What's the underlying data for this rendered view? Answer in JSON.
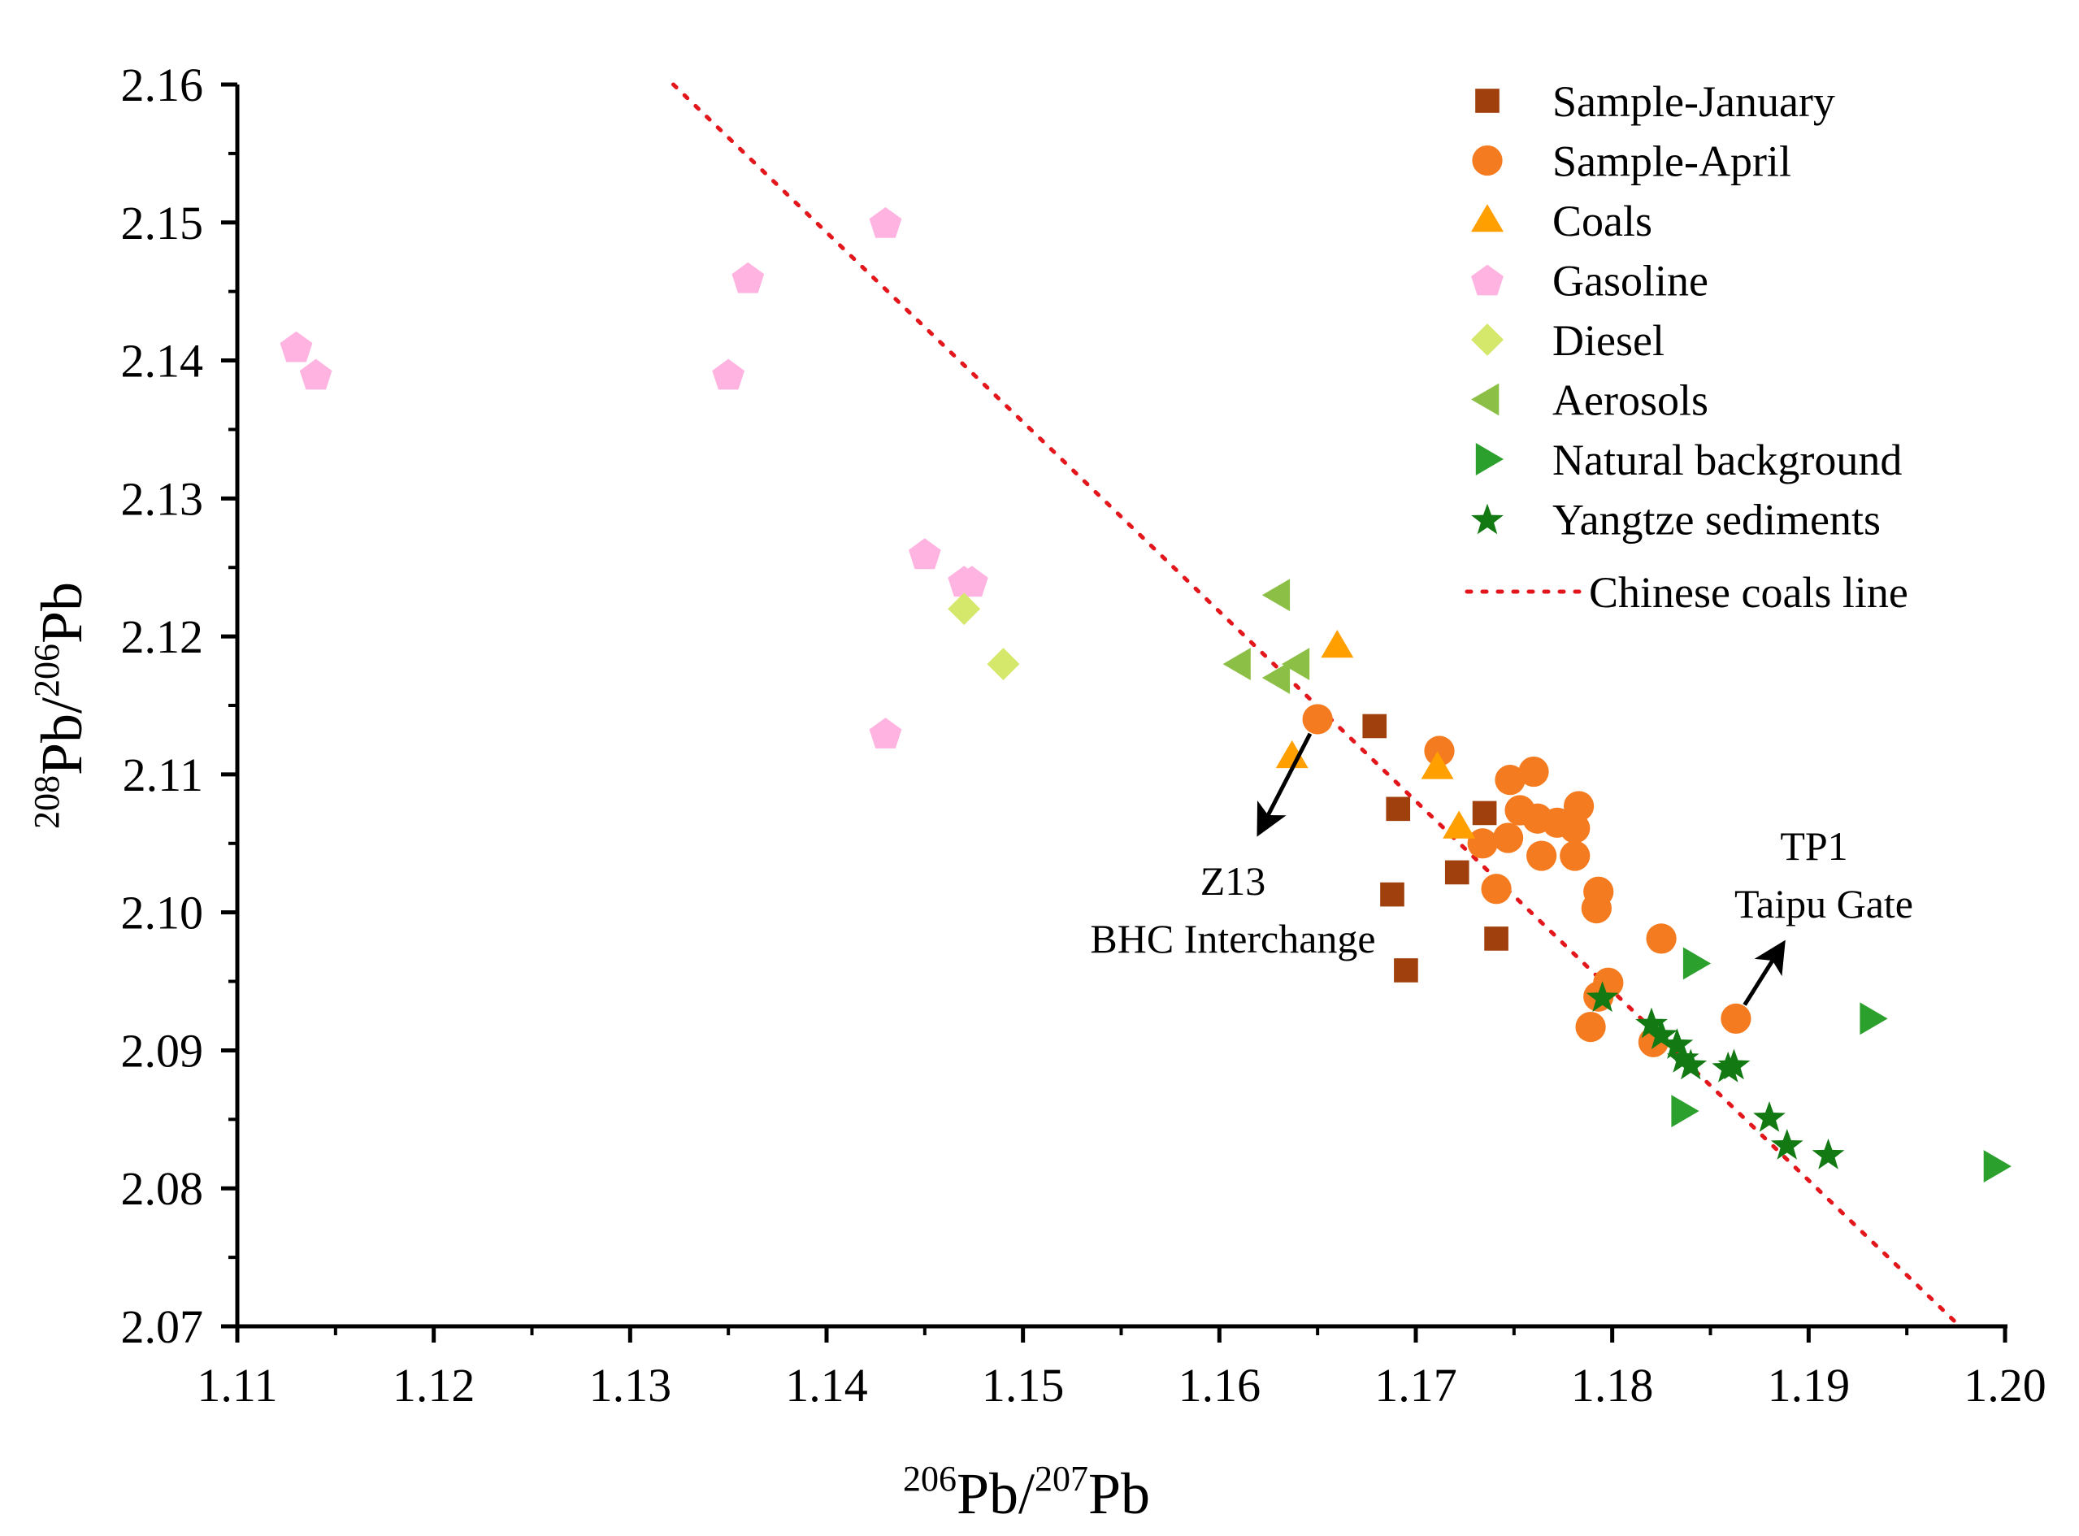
{
  "chart_data": {
    "type": "scatter",
    "title": "",
    "xlabel": {
      "sup1": "206",
      "base1": "Pb/",
      "sup2": "207",
      "base2": "Pb"
    },
    "ylabel": {
      "sup1": "208",
      "base1": "Pb/",
      "sup2": "206",
      "base2": "Pb"
    },
    "xlim": [
      1.11,
      1.2
    ],
    "ylim": [
      2.07,
      2.16
    ],
    "xticks": [
      "1.11",
      "1.12",
      "1.13",
      "1.14",
      "1.15",
      "1.16",
      "1.17",
      "1.18",
      "1.19",
      "1.20"
    ],
    "yticks": [
      "2.07",
      "2.08",
      "2.09",
      "2.10",
      "2.11",
      "2.12",
      "2.13",
      "2.14",
      "2.15",
      "2.16"
    ],
    "grid": false,
    "legend_position": "top-right",
    "series": [
      {
        "name": "Sample-January",
        "marker": "square",
        "color": "#A0410D",
        "x": [
          1.1679,
          1.1691,
          1.1688,
          1.1695,
          1.1735,
          1.1721,
          1.1741
        ],
        "y": [
          2.1135,
          2.1075,
          2.1013,
          2.0958,
          2.1072,
          2.1029,
          2.0981
        ]
      },
      {
        "name": "Sample-April",
        "marker": "circle",
        "color": "#F47B20",
        "x": [
          1.165,
          1.1712,
          1.1748,
          1.176,
          1.1753,
          1.1762,
          1.1772,
          1.1783,
          1.1781,
          1.1734,
          1.1747,
          1.1764,
          1.1781,
          1.1741,
          1.1793,
          1.1792,
          1.1825,
          1.1798,
          1.1793,
          1.1789,
          1.1821,
          1.1863
        ],
        "y": [
          2.114,
          2.1117,
          2.1096,
          2.1102,
          2.1074,
          2.1068,
          2.1065,
          2.1077,
          2.1061,
          2.105,
          2.1054,
          2.1041,
          2.1041,
          2.1017,
          2.1015,
          2.1003,
          2.0981,
          2.0949,
          2.0939,
          2.0917,
          2.0906,
          2.0923
        ]
      },
      {
        "name": "Coals",
        "marker": "triangle-up",
        "color": "#FF9F00",
        "x": [
          1.166,
          1.1637,
          1.1711,
          1.1722
        ],
        "y": [
          2.1193,
          2.1113,
          2.1105,
          2.1062
        ]
      },
      {
        "name": "Gasoline",
        "marker": "pentagon",
        "color": "#FFB3E0",
        "x": [
          1.143,
          1.136,
          1.113,
          1.114,
          1.135,
          1.145,
          1.147,
          1.1474,
          1.143
        ],
        "y": [
          2.15,
          2.146,
          2.141,
          2.139,
          2.139,
          2.126,
          2.124,
          2.124,
          2.113
        ]
      },
      {
        "name": "Diesel",
        "marker": "diamond",
        "color": "#D6E86C",
        "x": [
          1.147,
          1.149
        ],
        "y": [
          2.122,
          2.118
        ]
      },
      {
        "name": "Aerosols",
        "marker": "triangle-left",
        "color": "#8CBF45",
        "x": [
          1.163,
          1.161,
          1.164,
          1.163
        ],
        "y": [
          2.123,
          2.118,
          2.118,
          2.117
        ]
      },
      {
        "name": "Natural background",
        "marker": "triangle-right",
        "color": "#2CA02C",
        "x": [
          1.1842,
          1.1932,
          1.1836,
          1.1995
        ],
        "y": [
          2.0963,
          2.0923,
          2.0856,
          2.0816
        ]
      },
      {
        "name": "Yangtze sediments",
        "marker": "star",
        "color": "#137A13",
        "x": [
          1.1795,
          1.182,
          1.1825,
          1.1833,
          1.1836,
          1.184,
          1.1859,
          1.1862,
          1.188,
          1.1889,
          1.191
        ],
        "y": [
          2.0939,
          2.092,
          2.0912,
          2.0905,
          2.0895,
          2.089,
          2.0888,
          2.089,
          2.0852,
          2.0832,
          2.0825
        ]
      }
    ],
    "reference_line": {
      "name": "Chinese coals line",
      "style": "dotted",
      "color": "#E3161C",
      "x": [
        1.1322,
        1.1977
      ],
      "y": [
        2.16,
        2.07
      ]
    },
    "annotations": [
      {
        "id": "z13",
        "line1": "Z13",
        "line2": "BHC Interchange",
        "arrow_from": [
          1.165,
          2.114
        ],
        "arrow_to": [
          1.1621,
          2.106
        ]
      },
      {
        "id": "tp1",
        "line1": "TP1",
        "line2": "Taipu Gate",
        "arrow_from": [
          1.1863,
          2.0923
        ],
        "arrow_to": [
          1.1886,
          2.0975
        ]
      }
    ]
  }
}
